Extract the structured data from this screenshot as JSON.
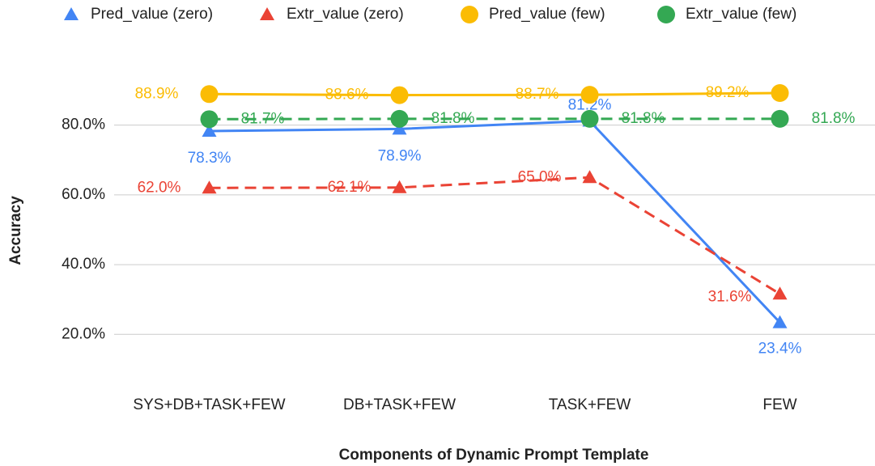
{
  "chart_data": {
    "type": "line",
    "xlabel": "Components of Dynamic Prompt Template",
    "ylabel": "Accuracy",
    "categories": [
      "SYS+DB+TASK+FEW",
      "DB+TASK+FEW",
      "TASK+FEW",
      "FEW"
    ],
    "series": [
      {
        "name": "Pred_value (zero)",
        "color": "#4285f4",
        "marker": "triangle",
        "line_style": "solid",
        "values": [
          78.3,
          78.9,
          81.2,
          23.4
        ],
        "value_labels": [
          "78.3%",
          "78.9%",
          "81.2%",
          "23.4%"
        ]
      },
      {
        "name": "Extr_value (zero)",
        "color": "#ea4335",
        "marker": "triangle",
        "line_style": "dashed",
        "values": [
          62.0,
          62.1,
          65.0,
          31.6
        ],
        "value_labels": [
          "62.0%",
          "62.1%",
          "65.0%",
          "31.6%"
        ]
      },
      {
        "name": "Pred_value (few)",
        "color": "#fbbc04",
        "marker": "circle",
        "line_style": "solid",
        "values": [
          88.9,
          88.6,
          88.7,
          89.2
        ],
        "value_labels": [
          "88.9%",
          "88.6%",
          "88.7%",
          "89.2%"
        ]
      },
      {
        "name": "Extr_value (few)",
        "color": "#34a853",
        "marker": "circle",
        "line_style": "dashed",
        "values": [
          81.7,
          81.8,
          81.8,
          81.8
        ],
        "value_labels": [
          "81.7%",
          "81.8%",
          "81.8%",
          "81.8%"
        ]
      }
    ],
    "ylim": [
      8,
      95
    ],
    "yticks": [
      {
        "value": 20,
        "label": "20.0%"
      },
      {
        "value": 40,
        "label": "40.0%"
      },
      {
        "value": 60,
        "label": "60.0%"
      },
      {
        "value": 80,
        "label": "80.0%"
      }
    ],
    "grid": true,
    "legend": "top"
  }
}
